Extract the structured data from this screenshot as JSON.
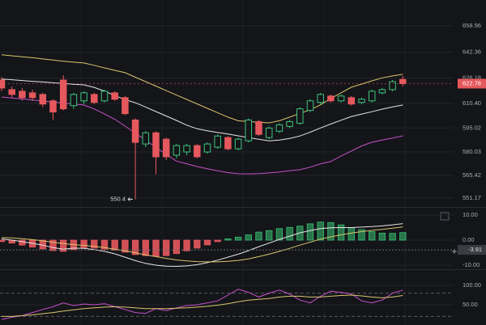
{
  "chart_data": [
    {
      "type": "candlestick",
      "open": [
        625,
        619,
        618,
        617,
        616,
        612,
        625,
        609,
        612,
        616,
        612,
        617,
        614,
        600,
        585,
        592,
        588,
        578,
        580,
        584,
        580,
        583,
        589,
        582,
        587,
        599,
        589,
        593,
        596,
        598,
        606,
        611,
        615,
        612,
        614,
        611,
        612,
        617,
        619,
        625.4
      ],
      "high": [
        627,
        621,
        620,
        619,
        617,
        613,
        628,
        617,
        618,
        617,
        619,
        618,
        615,
        601,
        593,
        593,
        589,
        585,
        585,
        585,
        586,
        591,
        590,
        589,
        601,
        600,
        596,
        598,
        600,
        608,
        613,
        617,
        616,
        616,
        615,
        614,
        619,
        620,
        625,
        627.6
      ],
      "low": [
        618,
        614,
        612,
        612,
        608,
        600,
        606,
        607,
        610,
        610,
        611,
        612,
        603,
        550.4,
        583,
        566,
        575,
        576,
        578,
        576,
        579,
        582,
        581,
        581,
        586,
        590,
        588,
        592,
        595,
        597,
        605,
        610,
        611,
        611,
        609,
        610,
        611,
        616,
        618,
        621
      ],
      "close": [
        620,
        616,
        614,
        614,
        610,
        605,
        607,
        616,
        617,
        611,
        618,
        613,
        604,
        586,
        592,
        577,
        577,
        584,
        584,
        577,
        585,
        590,
        582,
        588,
        600,
        591,
        595,
        597,
        599,
        607,
        612,
        616,
        612,
        615,
        610,
        613,
        618,
        619,
        624,
        622.78
      ],
      "up_color": "#3cc47c",
      "down_color": "#e5585d",
      "series": [
        {
          "name": "upper",
          "color": "#d9c56c",
          "values": [
            640.8,
            640.2,
            639.6,
            639,
            638.2,
            637.5,
            636.8,
            636.2,
            635.7,
            634.2,
            632.6,
            631.1,
            629.6,
            626.8,
            624,
            621.2,
            618.4,
            615.6,
            612.9,
            610.1,
            607.3,
            604.6,
            601.8,
            599.5,
            599,
            598.6,
            598.2,
            599.5,
            601.8,
            604.1,
            606.4,
            609.5,
            613.5,
            617,
            620.5,
            622.5,
            624.5,
            626.4,
            627.6,
            628.6
          ]
        },
        {
          "name": "middle",
          "color": "#e6e6e6",
          "values": [
            625.6,
            625.2,
            624.7,
            624.2,
            623.8,
            623.3,
            622.9,
            622.4,
            622,
            620.4,
            618.1,
            615.3,
            612.8,
            610.8,
            608.1,
            605.3,
            602.5,
            599.7,
            596.8,
            594.5,
            593.3,
            592.2,
            591.2,
            590.1,
            589,
            588,
            587,
            587.5,
            588.5,
            590,
            592.4,
            595,
            597.5,
            599.9,
            602.2,
            603.7,
            605.2,
            606.8,
            608.2,
            609.4
          ]
        },
        {
          "name": "lower",
          "color": "#c552c8",
          "values": [
            614.4,
            613.8,
            613.2,
            612.5,
            611.9,
            611.2,
            610.6,
            610,
            609.4,
            606.9,
            603.8,
            600.5,
            596.2,
            591.8,
            587.4,
            582.9,
            578.5,
            574.3,
            572.6,
            570.9,
            569.5,
            568.2,
            567.1,
            566.4,
            566.3,
            566.5,
            566.9,
            567.5,
            568.3,
            568.9,
            570.5,
            572.6,
            574,
            577.5,
            580.6,
            583.8,
            586.1,
            587.5,
            588.7,
            590.1
          ]
        }
      ],
      "ylim": [
        546.1,
        675.1
      ],
      "yticks": [
        658.96,
        642.36,
        626.18,
        {
          "value": 610.4,
          "label": "610.40"
        },
        595.02,
        580.03,
        565.42,
        551.17
      ],
      "grid": true,
      "last_price": 622.78,
      "low_annotation": 550.4
    },
    {
      "type": "macd",
      "histogram": [
        -0.6,
        -1.2,
        -2.0,
        -2.8,
        -3.5,
        -4.2,
        -4.5,
        -3.8,
        -3.0,
        -3.2,
        -3.6,
        -4.0,
        -4.8,
        -5.8,
        -6.2,
        -6.5,
        -6.2,
        -5.4,
        -4.3,
        -3.2,
        -1.9,
        -0.6,
        0.5,
        1.2,
        2.1,
        3.2,
        3.8,
        4.6,
        5.1,
        5.6,
        6.5,
        7.2,
        7.0,
        6.1,
        5.0,
        4.2,
        3.4,
        2.8,
        2.7,
        3.0
      ],
      "up_color": "#38c172",
      "down_color": "#e5585d",
      "series": [
        {
          "name": "macd",
          "color": "#e6e6e6",
          "values": [
            0.5,
            0,
            -0.6,
            -1.3,
            -2,
            -3,
            -3.6,
            -3.2,
            -3.3,
            -3.8,
            -4.5,
            -5.5,
            -6.8,
            -8.2,
            -9.3,
            -10,
            -10.4,
            -10.5,
            -10.3,
            -9.8,
            -9,
            -8,
            -6.8,
            -5.6,
            -4.2,
            -2.6,
            -1.2,
            0.3,
            1.6,
            2.9,
            3.8,
            4.6,
            4.9,
            5.0,
            5.0,
            5.2,
            5.4,
            5.7,
            6.1,
            6.6
          ]
        },
        {
          "name": "signal",
          "color": "#d9c56c",
          "values": [
            1.0,
            0.9,
            0.6,
            0.2,
            -0.3,
            -0.9,
            -1.4,
            -1.8,
            -2.1,
            -2.5,
            -3,
            -3.6,
            -4.3,
            -5.1,
            -5.9,
            -6.6,
            -7.3,
            -7.9,
            -8.3,
            -8.6,
            -8.7,
            -8.7,
            -8.5,
            -8.1,
            -7.5,
            -6.6,
            -5.6,
            -4.5,
            -3.3,
            -2,
            -0.8,
            0.4,
            1.3,
            2.1,
            2.8,
            3.4,
            3.9,
            4.3,
            4.8,
            5.3
          ]
        }
      ],
      "ylim": [
        -11.3,
        12.6
      ],
      "yticks": [
        {
          "value": 10,
          "label": "10.00"
        },
        {
          "value": 0,
          "label": "0.00"
        },
        {
          "value": -10,
          "label": "-10.00"
        }
      ],
      "marker": -3.91
    },
    {
      "type": "line",
      "series": [
        {
          "name": "rsi",
          "color": "#c552c8",
          "values": [
            12,
            18,
            22,
            30,
            38,
            45,
            55,
            48,
            52,
            50,
            53,
            45,
            38,
            30,
            28,
            40,
            35,
            42,
            48,
            50,
            55,
            60,
            75,
            90,
            82,
            70,
            80,
            88,
            78,
            62,
            55,
            72,
            85,
            82,
            78,
            60,
            55,
            62,
            80,
            88
          ]
        },
        {
          "name": "rsi-ma",
          "color": "#d9c56c",
          "values": [
            20,
            20,
            22,
            24,
            27,
            30,
            34,
            37,
            40,
            42,
            44,
            45,
            44,
            42,
            40,
            40,
            40,
            41,
            42,
            44,
            46,
            49,
            53,
            58,
            62,
            64,
            66,
            70,
            72,
            72,
            70,
            70,
            72,
            74,
            75,
            73,
            70,
            68,
            70,
            74
          ]
        }
      ],
      "ylim": [
        -2.1,
        137.5
      ],
      "yticks": [
        {
          "value": 100,
          "label": "100.00"
        },
        {
          "value": 50,
          "label": "50.00"
        }
      ],
      "levels": [
        80,
        20
      ]
    }
  ]
}
